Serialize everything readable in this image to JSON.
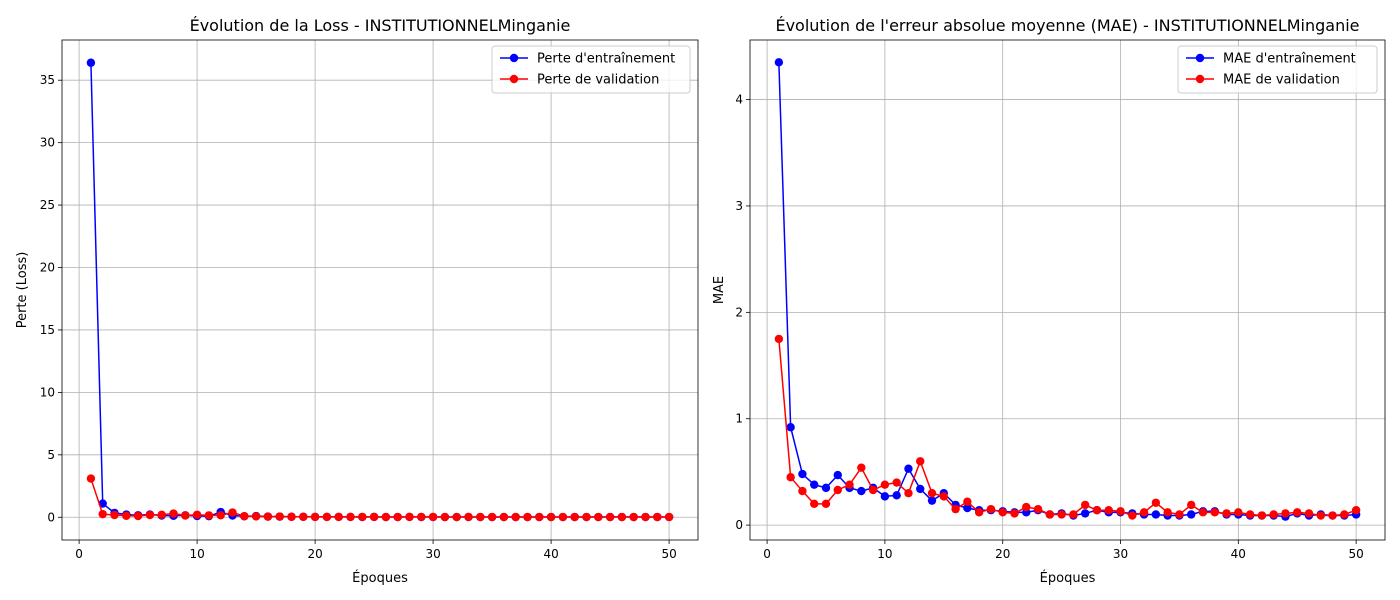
{
  "chart_data": [
    {
      "type": "line",
      "title": "Évolution de la Loss - INSTITUTIONNELMinganie",
      "xlabel": "Époques",
      "ylabel": "Perte (Loss)",
      "xlim": [
        -1.45,
        52.45
      ],
      "ylim": [
        -1.82,
        38.22
      ],
      "xticks": [
        0,
        10,
        20,
        30,
        40,
        50
      ],
      "yticks": [
        0,
        5,
        10,
        15,
        20,
        25,
        30,
        35
      ],
      "grid": true,
      "legend": "top-right",
      "x": [
        1,
        2,
        3,
        4,
        5,
        6,
        7,
        8,
        9,
        10,
        11,
        12,
        13,
        14,
        15,
        16,
        17,
        18,
        19,
        20,
        21,
        22,
        23,
        24,
        25,
        26,
        27,
        28,
        29,
        30,
        31,
        32,
        33,
        34,
        35,
        36,
        37,
        38,
        39,
        40,
        41,
        42,
        43,
        44,
        45,
        46,
        47,
        48,
        49,
        50
      ],
      "series": [
        {
          "name": "Perte d'entraînement",
          "color": "#0000ff",
          "values": [
            36.4,
            1.1,
            0.35,
            0.22,
            0.16,
            0.22,
            0.14,
            0.12,
            0.16,
            0.1,
            0.09,
            0.42,
            0.14,
            0.08,
            0.1,
            0.06,
            0.05,
            0.04,
            0.04,
            0.03,
            0.03,
            0.03,
            0.03,
            0.02,
            0.03,
            0.02,
            0.02,
            0.03,
            0.02,
            0.02,
            0.02,
            0.02,
            0.02,
            0.02,
            0.02,
            0.02,
            0.02,
            0.02,
            0.02,
            0.02,
            0.02,
            0.02,
            0.02,
            0.02,
            0.02,
            0.02,
            0.02,
            0.02,
            0.02,
            0.02
          ]
        },
        {
          "name": "Perte de validation",
          "color": "#ff0000",
          "values": [
            3.1,
            0.25,
            0.18,
            0.12,
            0.1,
            0.18,
            0.2,
            0.3,
            0.14,
            0.2,
            0.15,
            0.16,
            0.38,
            0.09,
            0.07,
            0.05,
            0.06,
            0.04,
            0.04,
            0.03,
            0.03,
            0.03,
            0.03,
            0.03,
            0.03,
            0.02,
            0.02,
            0.03,
            0.03,
            0.03,
            0.02,
            0.02,
            0.03,
            0.02,
            0.02,
            0.02,
            0.02,
            0.02,
            0.02,
            0.02,
            0.02,
            0.02,
            0.02,
            0.02,
            0.02,
            0.02,
            0.02,
            0.02,
            0.02,
            0.02
          ]
        }
      ]
    },
    {
      "type": "line",
      "title": "Évolution de l'erreur absolue moyenne (MAE) - INSTITUTIONNELMinganie",
      "xlabel": "Époques",
      "ylabel": "MAE",
      "xlim": [
        -1.45,
        52.45
      ],
      "ylim": [
        -0.14,
        4.56
      ],
      "xticks": [
        0,
        10,
        20,
        30,
        40,
        50
      ],
      "yticks": [
        0,
        1,
        2,
        3,
        4
      ],
      "grid": true,
      "legend": "top-right",
      "x": [
        1,
        2,
        3,
        4,
        5,
        6,
        7,
        8,
        9,
        10,
        11,
        12,
        13,
        14,
        15,
        16,
        17,
        18,
        19,
        20,
        21,
        22,
        23,
        24,
        25,
        26,
        27,
        28,
        29,
        30,
        31,
        32,
        33,
        34,
        35,
        36,
        37,
        38,
        39,
        40,
        41,
        42,
        43,
        44,
        45,
        46,
        47,
        48,
        49,
        50
      ],
      "series": [
        {
          "name": "MAE d'entraînement",
          "color": "#0000ff",
          "values": [
            4.35,
            0.92,
            0.48,
            0.38,
            0.35,
            0.47,
            0.35,
            0.32,
            0.35,
            0.27,
            0.28,
            0.53,
            0.34,
            0.23,
            0.3,
            0.19,
            0.16,
            0.14,
            0.14,
            0.13,
            0.12,
            0.12,
            0.14,
            0.1,
            0.11,
            0.09,
            0.11,
            0.14,
            0.12,
            0.12,
            0.11,
            0.1,
            0.1,
            0.09,
            0.09,
            0.1,
            0.13,
            0.13,
            0.1,
            0.1,
            0.09,
            0.09,
            0.09,
            0.08,
            0.11,
            0.09,
            0.1,
            0.09,
            0.09,
            0.1
          ]
        },
        {
          "name": "MAE de validation",
          "color": "#ff0000",
          "values": [
            1.75,
            0.45,
            0.32,
            0.2,
            0.2,
            0.33,
            0.38,
            0.54,
            0.33,
            0.38,
            0.4,
            0.3,
            0.6,
            0.3,
            0.27,
            0.15,
            0.22,
            0.12,
            0.15,
            0.12,
            0.11,
            0.17,
            0.15,
            0.1,
            0.1,
            0.1,
            0.19,
            0.14,
            0.14,
            0.13,
            0.09,
            0.12,
            0.21,
            0.12,
            0.1,
            0.19,
            0.12,
            0.12,
            0.11,
            0.12,
            0.1,
            0.09,
            0.1,
            0.11,
            0.12,
            0.11,
            0.09,
            0.09,
            0.1,
            0.14
          ]
        }
      ]
    }
  ]
}
